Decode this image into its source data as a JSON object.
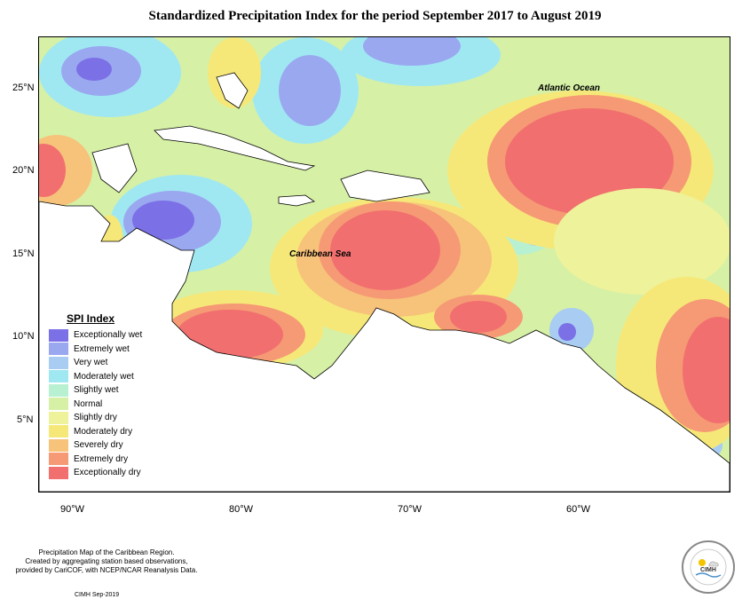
{
  "title": "Standardized Precipitation Index for the period September 2017 to August 2019",
  "y_axis_labels": [
    "25°N",
    "20°N",
    "15°N",
    "10°N",
    "5°N"
  ],
  "x_axis_labels": [
    "90°W",
    "80°W",
    "70°W",
    "60°W"
  ],
  "map_labels": {
    "atlantic": "Atlantic Ocean",
    "caribbean": "Caribbean Sea"
  },
  "legend": {
    "title": "SPI Index",
    "items": [
      {
        "label": "Exceptionally wet",
        "color": "#7b70e6"
      },
      {
        "label": "Extremely wet",
        "color": "#9aa8f0"
      },
      {
        "label": "Very wet",
        "color": "#a8ccf2"
      },
      {
        "label": "Moderately wet",
        "color": "#9fe8f2"
      },
      {
        "label": "Slightly wet",
        "color": "#b8f0d2"
      },
      {
        "label": "Normal",
        "color": "#d6f0a6"
      },
      {
        "label": "Slightly dry",
        "color": "#eef29a"
      },
      {
        "label": "Moderately dry",
        "color": "#f6e878"
      },
      {
        "label": "Severely dry",
        "color": "#f7c27a"
      },
      {
        "label": "Extremely dry",
        "color": "#f59a74"
      },
      {
        "label": "Exceptionally dry",
        "color": "#f26f6f"
      }
    ]
  },
  "footer": {
    "line1": "Precipitation Map of the Caribbean Region.",
    "line2": "Created by aggregating station based observations,",
    "line3": "provided by CariCOF, with NCEP/NCAR Reanalysis Data.",
    "credit": "CIMH Sep-2019",
    "logo_text": "CIMH"
  }
}
